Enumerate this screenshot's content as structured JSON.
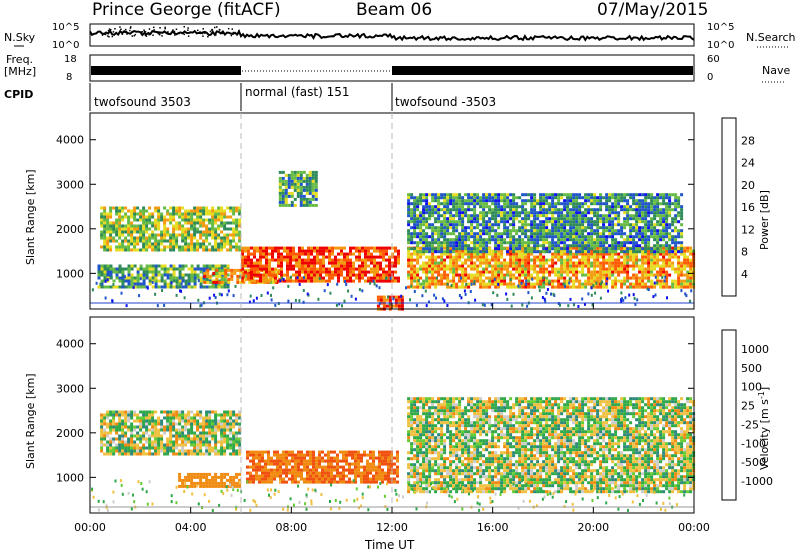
{
  "header": {
    "station": "Prince George (fitACF)",
    "beam": "Beam 06",
    "date": "07/May/2015"
  },
  "noise_panel": {
    "left_label": "N.Sky",
    "right_label": "N.Search",
    "left_ticks": [
      "10^5",
      "10^0"
    ],
    "right_ticks": [
      "10^5",
      "10^0"
    ]
  },
  "freq_panel": {
    "left_label_line1": "Freq.",
    "left_label_line2": "[MHz]",
    "left_ticks": [
      "18",
      "8"
    ],
    "right_label": "Nave",
    "right_ticks": [
      "60",
      "0"
    ]
  },
  "cpid": {
    "label": "CPID",
    "segments": [
      {
        "name": "twofsound 3503",
        "start_h": 0,
        "end_h": 6
      },
      {
        "name": "normal (fast) 151",
        "start_h": 6,
        "end_h": 12
      },
      {
        "name": "twofsound -3503",
        "start_h": 12,
        "end_h": 24
      }
    ]
  },
  "chart_data": [
    {
      "type": "heatmap",
      "title": "Power",
      "ylabel": "Slant Range [km]",
      "ylim": [
        200,
        4600
      ],
      "yticks": [
        1000,
        2000,
        3000,
        4000
      ],
      "xlim": [
        0,
        24
      ],
      "colorbar_label": "Power [dB]",
      "colorbar_ticks": [
        4,
        8,
        12,
        16,
        20,
        24,
        28
      ],
      "colorbar_colors": [
        "#1010ee",
        "#1f55c8",
        "#2f8a5a",
        "#66bb44",
        "#e6dd20",
        "#f39a10",
        "#ff5a00",
        "#ee0000"
      ],
      "regions": [
        {
          "t": [
            0.4,
            6.0
          ],
          "range_km": [
            1500,
            2500
          ],
          "level_db": 16
        },
        {
          "t": [
            0.3,
            5.5
          ],
          "range_km": [
            700,
            1200
          ],
          "level_db": 12
        },
        {
          "t": [
            4.5,
            7.5
          ],
          "range_km": [
            800,
            1100
          ],
          "level_db": 22
        },
        {
          "t": [
            6.0,
            12.2
          ],
          "range_km": [
            850,
            1600
          ],
          "level_db": 27
        },
        {
          "t": [
            7.5,
            9.0
          ],
          "range_km": [
            2500,
            3300
          ],
          "level_db": 12
        },
        {
          "t": [
            12.6,
            24.0
          ],
          "range_km": [
            700,
            1600
          ],
          "level_db": 22
        },
        {
          "t": [
            12.6,
            23.5
          ],
          "range_km": [
            1500,
            2800
          ],
          "level_db": 10
        },
        {
          "t": [
            11.4,
            12.4
          ],
          "range_km": [
            200,
            500
          ],
          "level_db": 28
        }
      ]
    },
    {
      "type": "heatmap",
      "title": "Velocity",
      "ylabel": "Slant Range [km]",
      "ylim": [
        200,
        4600
      ],
      "yticks": [
        1000,
        2000,
        3000,
        4000
      ],
      "xlim": [
        0,
        24
      ],
      "xticks": [
        "00:00",
        "04:00",
        "08:00",
        "12:00",
        "16:00",
        "20:00",
        "00:00"
      ],
      "xlabel": "Time UT",
      "colorbar_label": "Velocity [m s-1]",
      "colorbar_ticks": [
        1000,
        500,
        100,
        25,
        -25,
        -100,
        -500,
        -1000
      ],
      "colorbar_colors": [
        "#1a3fa8",
        "#2d8a7a",
        "#2fa84a",
        "#66cc33",
        "#cccccc",
        "#f0c040",
        "#f08a10",
        "#f05010",
        "#ee0000"
      ],
      "regions": [
        {
          "t": [
            0.4,
            6.0
          ],
          "range_km": [
            1500,
            2500
          ],
          "velocity": 0
        },
        {
          "t": [
            3.5,
            6.0
          ],
          "range_km": [
            800,
            1100
          ],
          "velocity": -300
        },
        {
          "t": [
            6.2,
            12.2
          ],
          "range_km": [
            900,
            1600
          ],
          "velocity": -500
        },
        {
          "t": [
            12.6,
            24.0
          ],
          "range_km": [
            700,
            2800
          ],
          "velocity": 0
        }
      ]
    }
  ],
  "x_axis": {
    "ticks": [
      "00:00",
      "04:00",
      "08:00",
      "12:00",
      "16:00",
      "20:00",
      "00:00"
    ],
    "label": "Time UT"
  },
  "power_colorbar": {
    "label": "Power [dB]",
    "ticks": [
      "28",
      "24",
      "20",
      "16",
      "12",
      "8",
      "4"
    ]
  },
  "velocity_colorbar": {
    "label": "Velocity [m s",
    "label_sup": "-1",
    "label_end": "]",
    "ticks": [
      "1000",
      "500",
      "100",
      "25",
      "-25",
      "-100",
      "-500",
      "-1000"
    ]
  },
  "axis_labels": {
    "power_ylabel": "Slant Range [km]",
    "velocity_ylabel": "Slant Range [km]",
    "yticks": [
      "4000",
      "3000",
      "2000",
      "1000"
    ]
  }
}
